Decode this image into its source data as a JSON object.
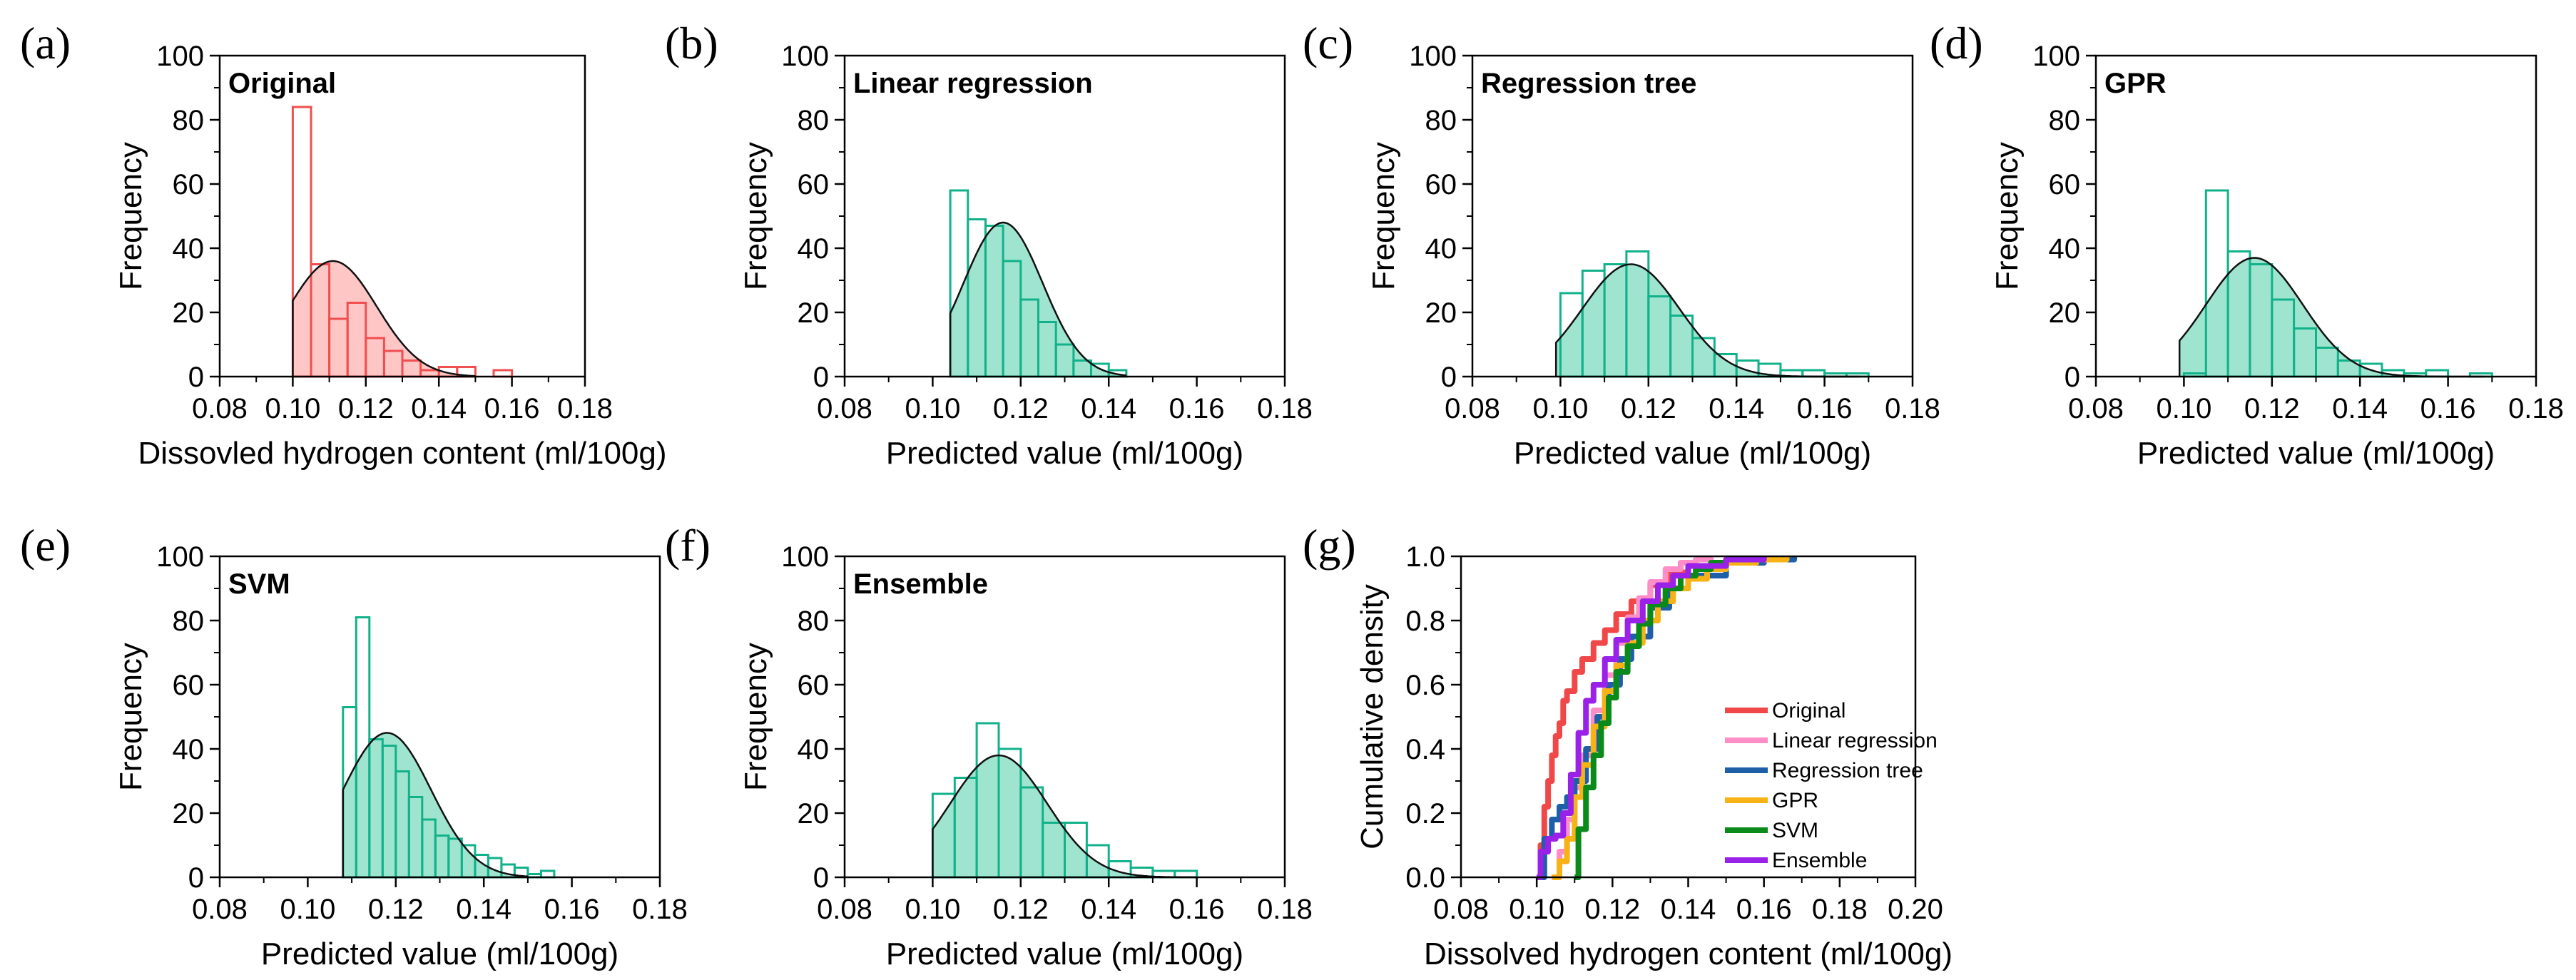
{
  "colors": {
    "original_stroke": "#f04f4f",
    "original_fill": "#ffc6c6",
    "predicted_stroke": "#11b28a",
    "predicted_fill": "#9fe4cf",
    "fit_curve": "#111111"
  },
  "chart_data": [
    {
      "type": "bar",
      "panel": "(a)",
      "title": "Original",
      "xlabel": "Dissovled hydrogen content (ml/100g)",
      "ylabel": "Frequency",
      "xlim": [
        0.08,
        0.18
      ],
      "ylim": [
        0,
        100
      ],
      "xticks": [
        0.08,
        0.1,
        0.12,
        0.14,
        0.16,
        0.18
      ],
      "yticks": [
        0,
        20,
        40,
        60,
        80,
        100
      ],
      "bin_width": 0.005,
      "bin_starts": [
        0.1,
        0.105,
        0.11,
        0.115,
        0.12,
        0.125,
        0.13,
        0.135,
        0.14,
        0.145,
        0.15,
        0.155
      ],
      "values": [
        84,
        35,
        18,
        23,
        12,
        8,
        5,
        2,
        3,
        3,
        0,
        2
      ],
      "series_color": "original",
      "fit": {
        "type": "normal",
        "mean": 0.111,
        "std": 0.012,
        "peak": 36,
        "x_start": 0.1,
        "x_end": 0.15
      }
    },
    {
      "type": "bar",
      "panel": "(b)",
      "title": "Linear regression",
      "xlabel": "Predicted value (ml/100g)",
      "ylabel": "Frequency",
      "xlim": [
        0.08,
        0.18
      ],
      "ylim": [
        0,
        100
      ],
      "xticks": [
        0.08,
        0.1,
        0.12,
        0.14,
        0.16,
        0.18
      ],
      "yticks": [
        0,
        20,
        40,
        60,
        80,
        100
      ],
      "bin_width": 0.004,
      "bin_starts": [
        0.104,
        0.108,
        0.112,
        0.116,
        0.12,
        0.124,
        0.128,
        0.132,
        0.136,
        0.14
      ],
      "values": [
        58,
        49,
        47,
        36,
        24,
        17,
        10,
        5,
        4,
        2
      ],
      "series_color": "predicted",
      "fit": {
        "type": "normal",
        "mean": 0.116,
        "std": 0.009,
        "peak": 48,
        "x_start": 0.104,
        "x_end": 0.144
      }
    },
    {
      "type": "bar",
      "panel": "(c)",
      "title": "Regression tree",
      "xlabel": "Predicted value (ml/100g)",
      "ylabel": "Frequency",
      "xlim": [
        0.08,
        0.18
      ],
      "ylim": [
        0,
        100
      ],
      "xticks": [
        0.08,
        0.1,
        0.12,
        0.14,
        0.16,
        0.18
      ],
      "yticks": [
        0,
        20,
        40,
        60,
        80,
        100
      ],
      "bin_width": 0.005,
      "bin_starts": [
        0.1,
        0.105,
        0.11,
        0.115,
        0.12,
        0.125,
        0.13,
        0.135,
        0.14,
        0.145,
        0.15,
        0.155,
        0.16,
        0.165
      ],
      "values": [
        26,
        33,
        35,
        39,
        25,
        19,
        12,
        7,
        5,
        4,
        2,
        2,
        1,
        1
      ],
      "series_color": "predicted",
      "fit": {
        "type": "normal",
        "mean": 0.116,
        "std": 0.011,
        "peak": 35,
        "x_start": 0.099,
        "x_end": 0.168
      }
    },
    {
      "type": "bar",
      "panel": "(d)",
      "title": "GPR",
      "xlabel": "Predicted value (ml/100g)",
      "ylabel": "Frequency",
      "xlim": [
        0.08,
        0.18
      ],
      "ylim": [
        0,
        100
      ],
      "xticks": [
        0.08,
        0.1,
        0.12,
        0.14,
        0.16,
        0.18
      ],
      "yticks": [
        0,
        20,
        40,
        60,
        80,
        100
      ],
      "bin_width": 0.005,
      "bin_starts": [
        0.1,
        0.105,
        0.11,
        0.115,
        0.12,
        0.125,
        0.13,
        0.135,
        0.14,
        0.145,
        0.15,
        0.155,
        0.16,
        0.165
      ],
      "values": [
        1,
        58,
        39,
        35,
        24,
        15,
        9,
        5,
        4,
        2,
        1,
        2,
        0,
        1
      ],
      "series_color": "predicted",
      "fit": {
        "type": "normal",
        "mean": 0.116,
        "std": 0.011,
        "peak": 37,
        "x_start": 0.099,
        "x_end": 0.168
      }
    },
    {
      "type": "bar",
      "panel": "(e)",
      "title": "SVM",
      "xlabel": "Predicted value (ml/100g)",
      "ylabel": "Frequency",
      "xlim": [
        0.08,
        0.18
      ],
      "ylim": [
        0,
        100
      ],
      "xticks": [
        0.08,
        0.1,
        0.12,
        0.14,
        0.16,
        0.18
      ],
      "yticks": [
        0,
        20,
        40,
        60,
        80,
        100
      ],
      "bin_width": 0.003,
      "bin_starts": [
        0.108,
        0.111,
        0.114,
        0.117,
        0.12,
        0.123,
        0.126,
        0.129,
        0.132,
        0.135,
        0.138,
        0.141,
        0.144,
        0.147,
        0.15,
        0.153
      ],
      "values": [
        53,
        81,
        43,
        41,
        33,
        25,
        18,
        13,
        12,
        10,
        7,
        6,
        4,
        3,
        1,
        2
      ],
      "series_color": "predicted",
      "fit": {
        "type": "normal",
        "mean": 0.118,
        "std": 0.01,
        "peak": 45,
        "x_start": 0.108,
        "x_end": 0.15
      }
    },
    {
      "type": "bar",
      "panel": "(f)",
      "title": "Ensemble",
      "xlabel": "Predicted value (ml/100g)",
      "ylabel": "Frequency",
      "xlim": [
        0.08,
        0.18
      ],
      "ylim": [
        0,
        100
      ],
      "xticks": [
        0.08,
        0.1,
        0.12,
        0.14,
        0.16,
        0.18
      ],
      "yticks": [
        0,
        20,
        40,
        60,
        80,
        100
      ],
      "bin_width": 0.005,
      "bin_starts": [
        0.1,
        0.105,
        0.11,
        0.115,
        0.12,
        0.125,
        0.13,
        0.135,
        0.14,
        0.145,
        0.15,
        0.155
      ],
      "values": [
        26,
        31,
        48,
        40,
        28,
        17,
        17,
        10,
        5,
        3,
        2,
        2
      ],
      "series_color": "predicted",
      "fit": {
        "type": "normal",
        "mean": 0.115,
        "std": 0.011,
        "peak": 38,
        "x_start": 0.1,
        "x_end": 0.16
      }
    },
    {
      "type": "line",
      "panel": "(g)",
      "title": "",
      "xlabel": "Dissolved hydrogen content (ml/100g)",
      "ylabel": "Cumulative density",
      "xlim": [
        0.08,
        0.2
      ],
      "ylim": [
        0,
        1.0
      ],
      "xticks": [
        0.08,
        0.1,
        0.12,
        0.14,
        0.16,
        0.18,
        0.2
      ],
      "yticks": [
        0.0,
        0.2,
        0.4,
        0.6,
        0.8,
        1.0
      ],
      "legend_position": "center-right",
      "series": [
        {
          "name": "Original",
          "color": "#f04848",
          "x": [
            0.1,
            0.101,
            0.102,
            0.103,
            0.104,
            0.105,
            0.106,
            0.107,
            0.108,
            0.11,
            0.112,
            0.115,
            0.118,
            0.121,
            0.125,
            0.13,
            0.135,
            0.14,
            0.15,
            0.16
          ],
          "y": [
            0.0,
            0.1,
            0.22,
            0.3,
            0.38,
            0.44,
            0.48,
            0.55,
            0.58,
            0.64,
            0.68,
            0.73,
            0.77,
            0.82,
            0.86,
            0.91,
            0.95,
            0.97,
            0.99,
            1.0
          ]
        },
        {
          "name": "Linear regression",
          "color": "#ff8ec8",
          "x": [
            0.104,
            0.106,
            0.108,
            0.11,
            0.112,
            0.115,
            0.118,
            0.121,
            0.124,
            0.127,
            0.13,
            0.134,
            0.138,
            0.142,
            0.146
          ],
          "y": [
            0.0,
            0.08,
            0.18,
            0.28,
            0.38,
            0.52,
            0.63,
            0.73,
            0.81,
            0.87,
            0.92,
            0.96,
            0.98,
            0.99,
            1.0
          ]
        },
        {
          "name": "Regression tree",
          "color": "#1f5fa8",
          "x": [
            0.1,
            0.102,
            0.104,
            0.106,
            0.108,
            0.11,
            0.113,
            0.116,
            0.119,
            0.122,
            0.125,
            0.13,
            0.135,
            0.14,
            0.15,
            0.16,
            0.168
          ],
          "y": [
            0.0,
            0.12,
            0.18,
            0.22,
            0.25,
            0.3,
            0.4,
            0.5,
            0.6,
            0.68,
            0.75,
            0.84,
            0.9,
            0.94,
            0.98,
            0.99,
            1.0
          ]
        },
        {
          "name": "GPR",
          "color": "#f7b316",
          "x": [
            0.104,
            0.106,
            0.108,
            0.11,
            0.112,
            0.115,
            0.118,
            0.121,
            0.124,
            0.128,
            0.132,
            0.136,
            0.14,
            0.145,
            0.15,
            0.158,
            0.166
          ],
          "y": [
            0.0,
            0.05,
            0.12,
            0.25,
            0.35,
            0.47,
            0.58,
            0.66,
            0.73,
            0.8,
            0.86,
            0.9,
            0.93,
            0.96,
            0.98,
            0.99,
            1.0
          ]
        },
        {
          "name": "SVM",
          "color": "#0a8a1a",
          "x": [
            0.11,
            0.111,
            0.113,
            0.115,
            0.117,
            0.119,
            0.121,
            0.124,
            0.127,
            0.13,
            0.134,
            0.138,
            0.142,
            0.146,
            0.15,
            0.155
          ],
          "y": [
            0.0,
            0.15,
            0.28,
            0.38,
            0.48,
            0.56,
            0.64,
            0.72,
            0.79,
            0.85,
            0.9,
            0.94,
            0.96,
            0.98,
            0.99,
            1.0
          ]
        },
        {
          "name": "Ensemble",
          "color": "#9a22e8",
          "x": [
            0.1,
            0.101,
            0.103,
            0.105,
            0.107,
            0.109,
            0.111,
            0.113,
            0.115,
            0.118,
            0.121,
            0.124,
            0.128,
            0.132,
            0.136,
            0.14,
            0.15,
            0.16
          ],
          "y": [
            0.0,
            0.08,
            0.12,
            0.13,
            0.2,
            0.32,
            0.45,
            0.55,
            0.6,
            0.68,
            0.74,
            0.8,
            0.86,
            0.91,
            0.94,
            0.97,
            0.99,
            1.0
          ]
        }
      ]
    }
  ]
}
